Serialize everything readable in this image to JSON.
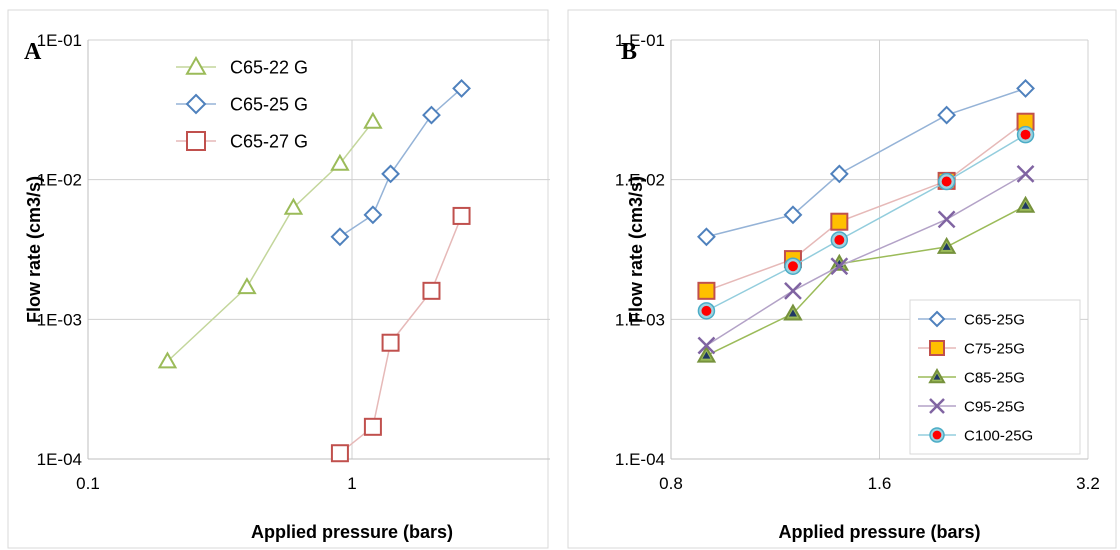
{
  "chart_data": [
    {
      "panel_label": "A",
      "type": "line",
      "xlabel": "Applied pressure (bars)",
      "ylabel": "Flow rate (cm3/s)",
      "x_scale": "log",
      "y_scale": "log",
      "xlim": [
        0.1,
        10
      ],
      "ylim": [
        0.0001,
        0.1
      ],
      "x_ticks": [
        0.1,
        1
      ],
      "x_tick_labels": [
        "0.1",
        "1"
      ],
      "y_ticks": [
        0.1,
        0.01,
        0.001,
        0.0001
      ],
      "y_tick_labels": [
        "1E-01",
        "1E-02",
        "1E-03",
        "1E-04"
      ],
      "grid": true,
      "legend_position": "top-left",
      "series": [
        {
          "name": "C65-22 G",
          "marker": "triangle",
          "color": "#9bbb59",
          "line_color": "#c3d69b",
          "x": [
            0.2,
            0.4,
            0.6,
            0.9,
            1.2
          ],
          "y": [
            0.0005,
            0.0017,
            0.0063,
            0.013,
            0.026
          ]
        },
        {
          "name": "C65-25 G",
          "marker": "diamond",
          "color": "#4f81bd",
          "line_color": "#95b3d7",
          "x": [
            0.9,
            1.2,
            1.4,
            2.0,
            2.6
          ],
          "y": [
            0.0039,
            0.0056,
            0.011,
            0.029,
            0.045
          ]
        },
        {
          "name": "C65-27 G",
          "marker": "square",
          "color": "#c0504d",
          "line_color": "#e6b9b8",
          "x": [
            0.9,
            1.2,
            1.4,
            2.0,
            2.6
          ],
          "y": [
            0.00011,
            0.00017,
            0.00068,
            0.0016,
            0.0055
          ]
        }
      ]
    },
    {
      "panel_label": "B",
      "type": "line",
      "xlabel": "Applied pressure (bars)",
      "ylabel": "Flow rate (cm3/s)",
      "x_scale": "log",
      "y_scale": "log",
      "xlim": [
        0.8,
        3.2
      ],
      "ylim": [
        0.0001,
        0.1
      ],
      "x_ticks": [
        0.8,
        1.6,
        3.2
      ],
      "x_tick_labels": [
        "0.8",
        "1.6",
        "3.2"
      ],
      "y_ticks": [
        0.1,
        0.01,
        0.001,
        0.0001
      ],
      "y_tick_labels": [
        "1.E-01",
        "1.E-02",
        "1.E-03",
        "1.E-04"
      ],
      "grid": true,
      "legend_position": "bottom-right",
      "series": [
        {
          "name": "C65-25G",
          "marker": "diamond",
          "color": "#4f81bd",
          "fill": "#ffffff",
          "line_color": "#95b3d7",
          "x": [
            0.9,
            1.2,
            1.4,
            2.0,
            2.6
          ],
          "y": [
            0.0039,
            0.0056,
            0.011,
            0.029,
            0.045
          ]
        },
        {
          "name": "C75-25G",
          "marker": "square",
          "color": "#c0504d",
          "fill": "#ffc000",
          "line_color": "#e6b9b8",
          "x": [
            0.9,
            1.2,
            1.4,
            2.0,
            2.6
          ],
          "y": [
            0.0016,
            0.0027,
            0.005,
            0.0098,
            0.026
          ]
        },
        {
          "name": "C85-25G",
          "marker": "triangle",
          "color": "#76923c",
          "fill": "#9bbb59",
          "inner": "#1f3864",
          "line_color": "#9bbb59",
          "x": [
            0.9,
            1.2,
            1.4,
            2.0,
            2.6
          ],
          "y": [
            0.00055,
            0.0011,
            0.0025,
            0.0033,
            0.0065
          ]
        },
        {
          "name": "C95-25G",
          "marker": "x",
          "color": "#8064a2",
          "line_color": "#b3a2c7",
          "x": [
            0.9,
            1.2,
            1.4,
            2.0,
            2.6
          ],
          "y": [
            0.00065,
            0.0016,
            0.0024,
            0.0052,
            0.011
          ]
        },
        {
          "name": "C100-25G",
          "marker": "circle",
          "color": "#4bacc6",
          "fill": "#ff0000",
          "line_color": "#93cddd",
          "x": [
            0.9,
            1.2,
            1.4,
            2.0,
            2.6
          ],
          "y": [
            0.00115,
            0.0024,
            0.0037,
            0.0097,
            0.021
          ]
        }
      ]
    }
  ]
}
